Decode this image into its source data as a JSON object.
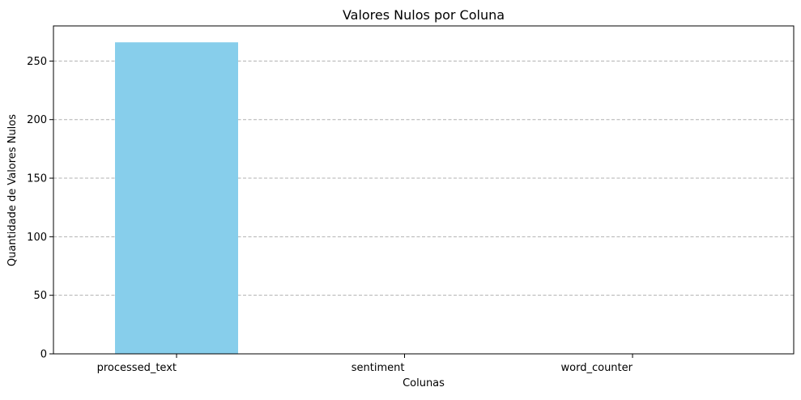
{
  "chart_data": {
    "type": "bar",
    "title": "Valores Nulos por Coluna",
    "xlabel": "Colunas",
    "ylabel": "Quantidade de Valores Nulos",
    "categories": [
      "processed_text",
      "sentiment",
      "word_counter"
    ],
    "values": [
      266,
      0,
      0
    ],
    "ylim": [
      0,
      280
    ],
    "yticks": [
      0,
      50,
      100,
      150,
      200,
      250
    ],
    "grid": "y-axis dashed",
    "bar_color": "#87ceeb",
    "grid_color": "#b0b0b0"
  }
}
